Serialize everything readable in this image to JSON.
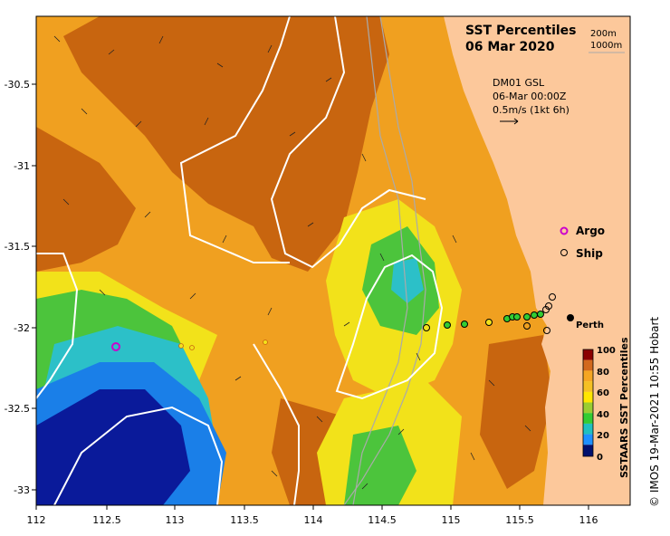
{
  "map": {
    "title_line1": "SST Percentiles",
    "title_line2": "06 Mar 2020",
    "isobaths": [
      "200m",
      "1000m"
    ],
    "current_info": {
      "line1": "DM01 GSL",
      "line2": "06-Mar 00:00Z",
      "line3": "0.5m/s (1kt 6h)"
    },
    "legend": {
      "argo_label": "Argo",
      "ship_label": "Ship",
      "argo_color": "#cc00cc",
      "ship_color": "#000000"
    },
    "place_label": "Perth",
    "credit": "© IMOS 19-Mar-2021 10:55 Hobart",
    "lon_ticks": [
      "112",
      "112.5",
      "113",
      "113.5",
      "114",
      "114.5",
      "115",
      "115.5",
      "116"
    ],
    "lat_ticks": [
      "-30.5",
      "-31",
      "-31.5",
      "-32",
      "-32.5",
      "-33"
    ],
    "colorbar": {
      "label": "SSTAARS SST Percentiles",
      "ticks": [
        "100",
        "80",
        "60",
        "40",
        "20",
        "0"
      ],
      "colors": [
        "#8b0000",
        "#d2691e",
        "#f5a623",
        "#ffe600",
        "#9acd32",
        "#33cc33",
        "#20c0c0",
        "#1e90ff",
        "#1f3fd0",
        "#00106e"
      ]
    },
    "colors": {
      "land": "#fcc89b",
      "dark_orange": "#c8650f",
      "orange": "#f0a020",
      "yellow": "#f2e21a",
      "green": "#4cc43c",
      "cyan": "#2cc0c8",
      "blue": "#1a7fe8",
      "navy": "#0a1a9a",
      "contour": "#ffffff",
      "coast_line": "#aaaaaa"
    }
  }
}
